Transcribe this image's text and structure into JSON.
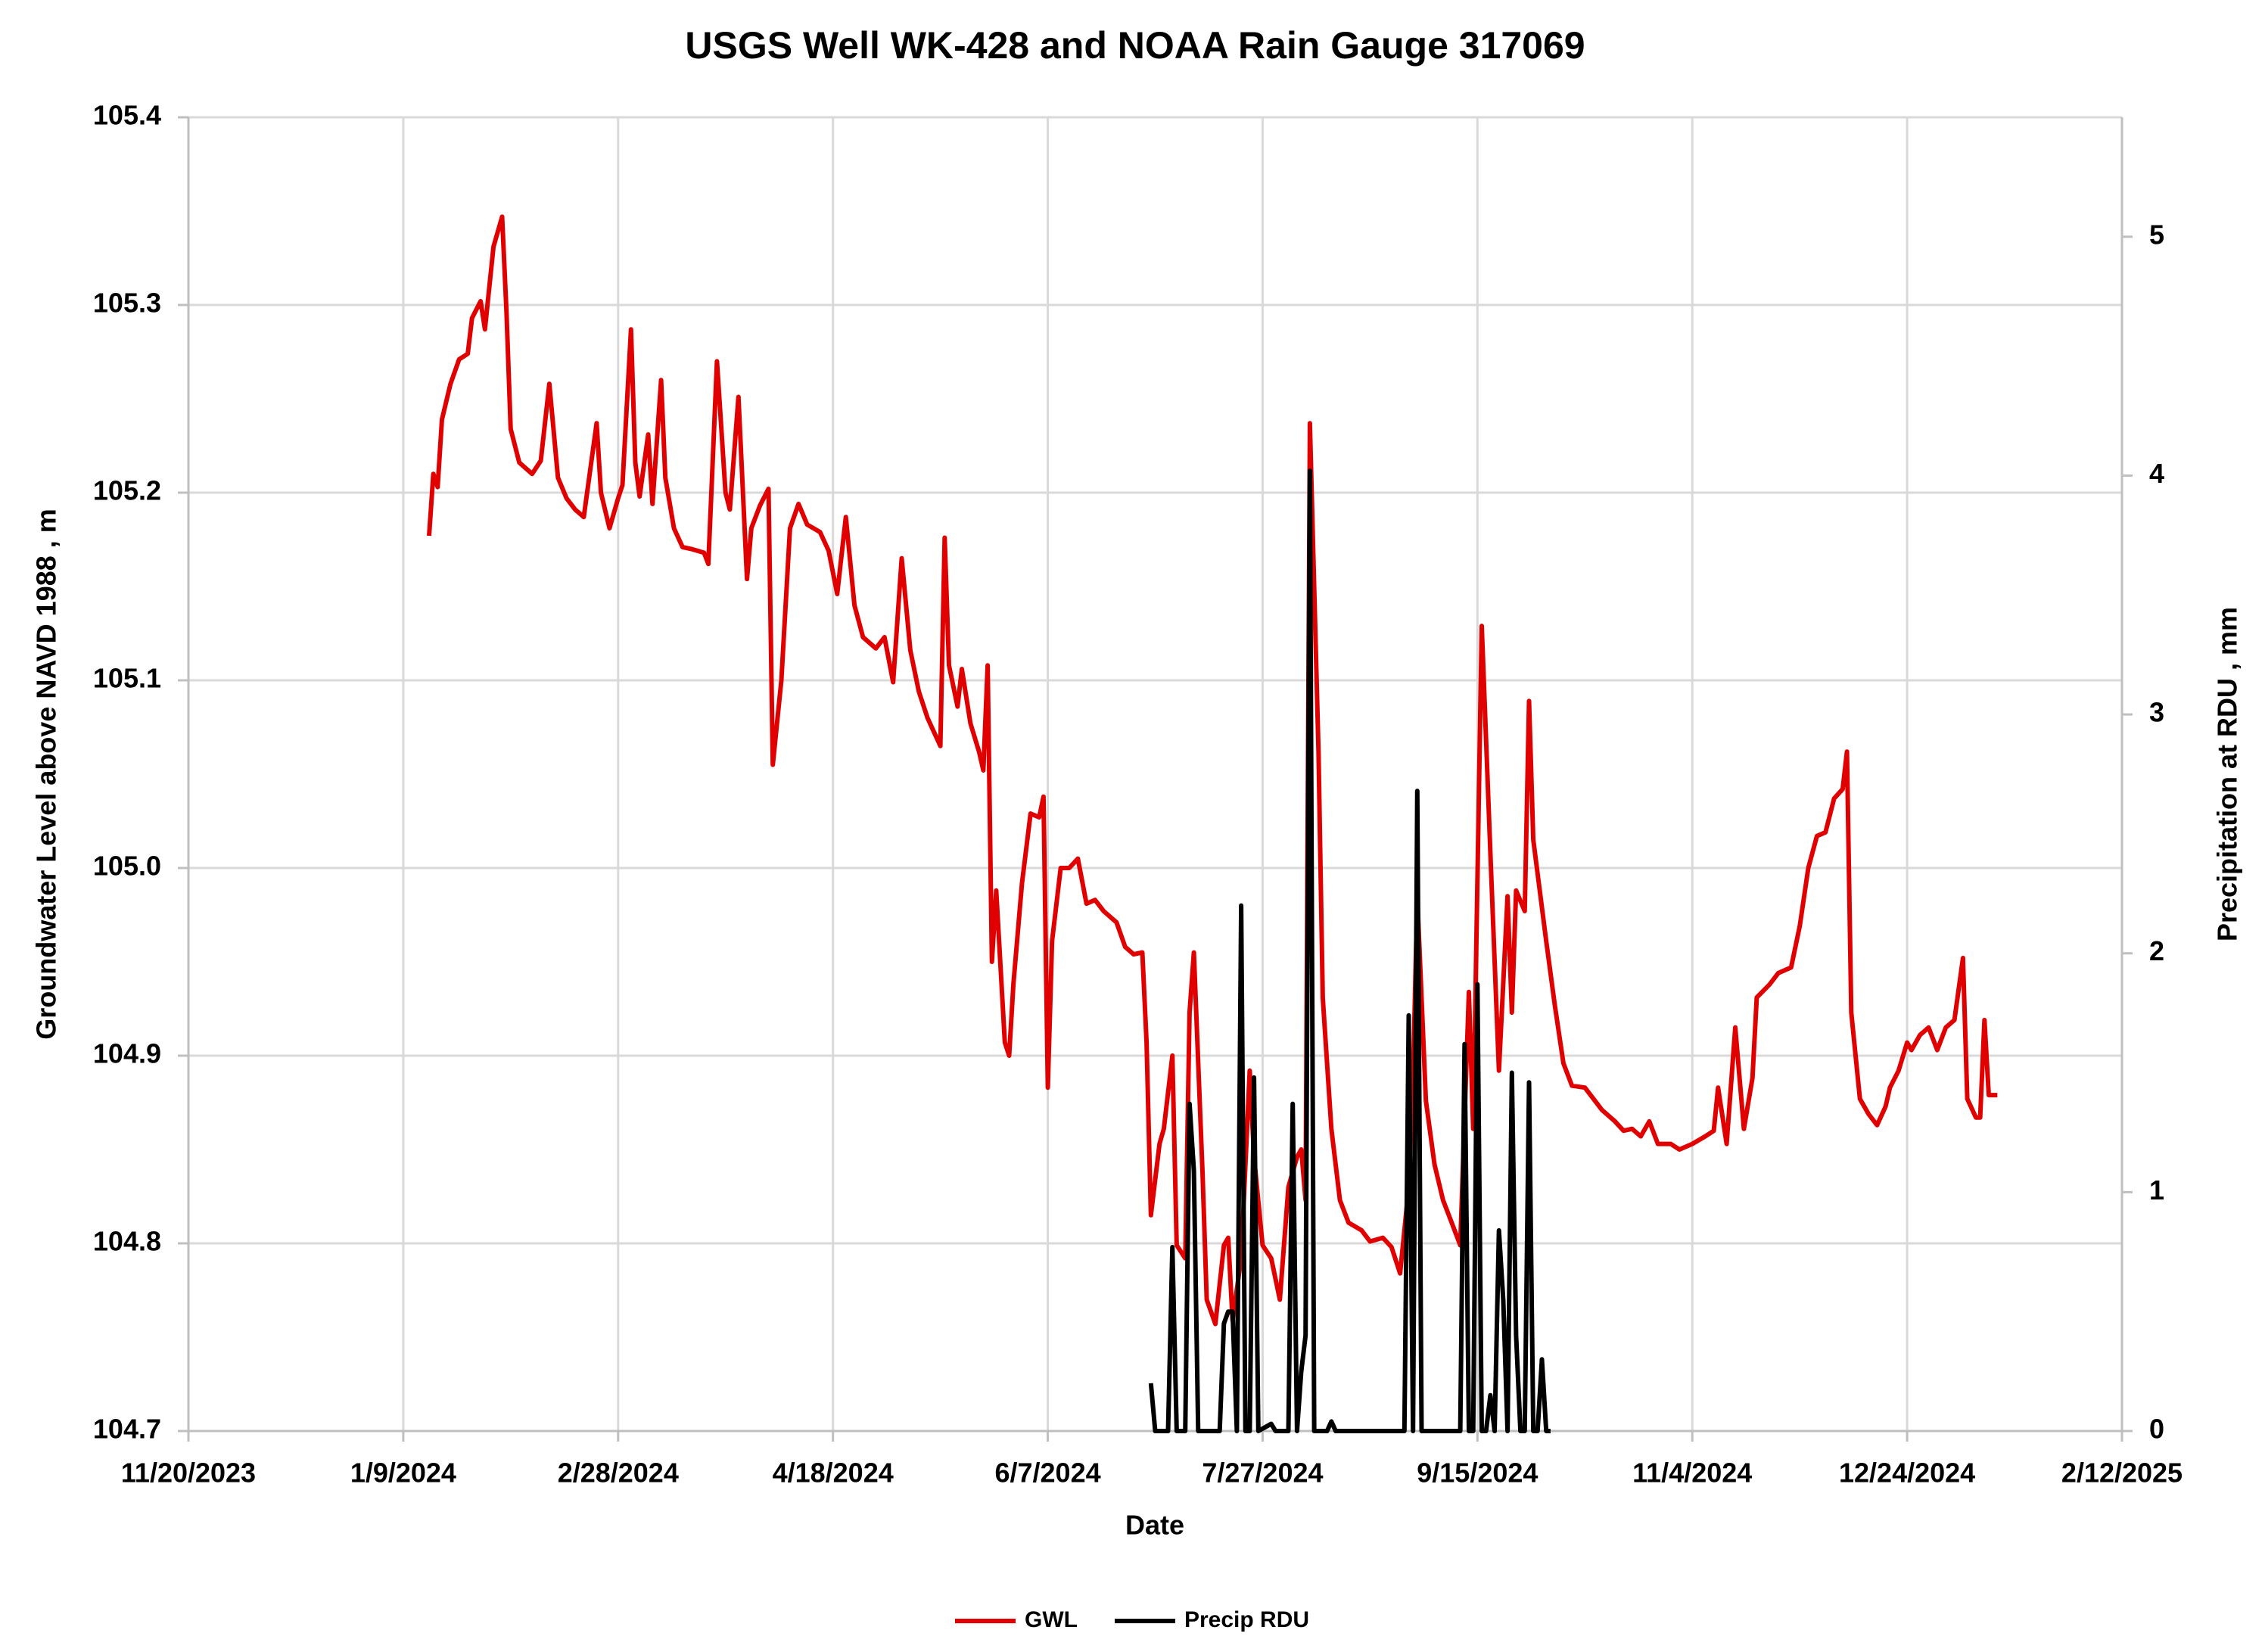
{
  "chart_data": {
    "type": "line",
    "title": "USGS Well WK-428 and NOAA Rain Gauge 317069",
    "x_label": "Date",
    "y_label": "Groundwater Level above NAVD 1988 , m",
    "y2_label": "Precipitation at RDU , mm",
    "xlim": [
      "11/20/2023",
      "2/12/2025"
    ],
    "xticks": [
      "11/20/2023",
      "1/9/2024",
      "2/28/2024",
      "4/18/2024",
      "6/7/2024",
      "7/27/2024",
      "9/15/2024",
      "11/4/2024",
      "12/24/2024",
      "2/12/2025"
    ],
    "ylim": [
      104.7,
      105.4
    ],
    "yticks": [
      104.7,
      104.8,
      104.9,
      {
        "value": 105,
        "label": "105.0"
      },
      105.1,
      105.2,
      105.3,
      105.4
    ],
    "y2lim": [
      0,
      5.5
    ],
    "y2ticks": [
      0,
      1,
      2,
      3,
      4,
      5
    ],
    "grid": true,
    "legend": "bottom",
    "series": [
      {
        "name": "GWL",
        "color": "#e00000",
        "x": [
          "1/15/2024",
          "1/16/2024",
          "1/17/2024",
          "1/18/2024",
          "1/20/2024",
          "1/22/2024",
          "1/24/2024",
          "1/25/2024",
          "1/27/2024",
          "1/28/2024",
          "1/30/2024",
          "2/1/2024",
          "2/2/2024",
          "2/3/2024",
          "2/5/2024",
          "2/8/2024",
          "2/10/2024",
          "2/12/2024",
          "2/14/2024",
          "2/16/2024",
          "2/18/2024",
          "2/20/2024",
          "2/23/2024",
          "2/24/2024",
          "2/26/2024",
          "2/28/2024",
          "2/29/2024",
          "3/2/2024",
          "3/3/2024",
          "3/4/2024",
          "3/6/2024",
          "3/7/2024",
          "3/9/2024",
          "3/10/2024",
          "3/12/2024",
          "3/14/2024",
          "3/16/2024",
          "3/19/2024",
          "3/20/2024",
          "3/22/2024",
          "3/24/2024",
          "3/25/2024",
          "3/27/2024",
          "3/29/2024",
          "3/30/2024",
          "4/1/2024",
          "4/3/2024",
          "4/4/2024",
          "4/6/2024",
          "4/8/2024",
          "4/10/2024",
          "4/12/2024",
          "4/15/2024",
          "4/17/2024",
          "4/19/2024",
          "4/21/2024",
          "4/23/2024",
          "4/25/2024",
          "4/28/2024",
          "4/30/2024",
          "5/2/2024",
          "5/4/2024",
          "5/6/2024",
          "5/8/2024",
          "5/10/2024",
          "5/13/2024",
          "5/14/2024",
          "5/15/2024",
          "5/17/2024",
          "5/18/2024",
          "5/20/2024",
          "5/22/2024",
          "5/23/2024",
          "5/24/2024",
          "5/25/2024",
          "5/26/2024",
          "5/28/2024",
          "5/29/2024",
          "5/30/2024",
          "6/1/2024",
          "6/3/2024",
          "6/5/2024",
          "6/6/2024",
          "6/7/2024",
          "6/8/2024",
          "6/10/2024",
          "6/12/2024",
          "6/14/2024",
          "6/16/2024",
          "6/18/2024",
          "6/20/2024",
          "6/23/2024",
          "6/25/2024",
          "6/27/2024",
          "6/29/2024",
          "6/30/2024",
          "7/1/2024",
          "7/3/2024",
          "7/4/2024",
          "7/6/2024",
          "7/7/2024",
          "7/9/2024",
          "7/10/2024",
          "7/11/2024",
          "7/13/2024",
          "7/14/2024",
          "7/16/2024",
          "7/18/2024",
          "7/19/2024",
          "7/20/2024",
          "7/22/2024",
          "7/24/2024",
          "7/25/2024",
          "7/27/2024",
          "7/29/2024",
          "7/31/2024",
          "8/2/2024",
          "8/4/2024",
          "8/5/2024",
          "8/6/2024",
          "8/7/2024",
          "8/9/2024",
          "8/10/2024",
          "8/12/2024",
          "8/14/2024",
          "8/16/2024",
          "8/19/2024",
          "8/21/2024",
          "8/24/2024",
          "8/26/2024",
          "8/28/2024",
          "8/30/2024",
          "8/31/2024",
          "9/1/2024",
          "9/3/2024",
          "9/5/2024",
          "9/7/2024",
          "9/9/2024",
          "9/11/2024",
          "9/13/2024",
          "9/14/2024",
          "9/16/2024",
          "9/18/2024",
          "9/20/2024",
          "9/22/2024",
          "9/23/2024",
          "9/24/2024",
          "9/26/2024",
          "9/27/2024",
          "9/28/2024",
          "10/1/2024",
          "10/3/2024",
          "10/5/2024",
          "10/7/2024",
          "10/10/2024",
          "10/12/2024",
          "10/14/2024",
          "10/17/2024",
          "10/19/2024",
          "10/21/2024",
          "10/23/2024",
          "10/25/2024",
          "10/27/2024",
          "10/30/2024",
          "11/1/2024",
          "11/4/2024",
          "11/7/2024",
          "11/9/2024",
          "11/10/2024",
          "11/12/2024",
          "11/14/2024",
          "11/16/2024",
          "11/18/2024",
          "11/19/2024",
          "11/22/2024",
          "11/24/2024",
          "11/27/2024",
          "11/29/2024",
          "12/1/2024",
          "12/3/2024",
          "12/5/2024",
          "12/7/2024",
          "12/9/2024",
          "12/10/2024",
          "12/11/2024",
          "12/13/2024",
          "12/15/2024",
          "12/17/2024",
          "12/19/2024",
          "12/20/2024",
          "12/22/2024",
          "12/24/2024",
          "12/25/2024",
          "12/27/2024",
          "12/29/2024",
          "12/31/2024",
          "1/2/2025",
          "1/4/2025",
          "1/6/2025",
          "1/7/2025",
          "1/9/2025",
          "1/10/2025",
          "1/11/2025",
          "1/12/2025",
          "1/14/2025"
        ],
        "values": [
          105.177,
          105.21,
          105.203,
          105.239,
          105.258,
          105.271,
          105.274,
          105.293,
          105.302,
          105.287,
          105.331,
          105.347,
          105.297,
          105.234,
          105.216,
          105.21,
          105.217,
          105.258,
          105.208,
          105.197,
          105.191,
          105.187,
          105.237,
          105.2,
          105.181,
          105.197,
          105.204,
          105.287,
          105.216,
          105.198,
          105.231,
          105.194,
          105.26,
          105.208,
          105.181,
          105.171,
          105.17,
          105.168,
          105.162,
          105.27,
          105.2,
          105.191,
          105.251,
          105.154,
          105.181,
          105.193,
          105.202,
          105.055,
          105.1,
          105.181,
          105.194,
          105.183,
          105.179,
          105.169,
          105.146,
          105.187,
          105.14,
          105.123,
          105.117,
          105.123,
          105.099,
          105.165,
          105.116,
          105.094,
          105.08,
          105.065,
          105.176,
          105.108,
          105.086,
          105.106,
          105.077,
          105.062,
          105.052,
          105.108,
          104.95,
          104.988,
          104.907,
          104.9,
          104.938,
          104.992,
          105.029,
          105.027,
          105.038,
          104.883,
          104.961,
          105,
          105,
          105.005,
          104.981,
          104.983,
          104.977,
          104.971,
          104.958,
          104.954,
          104.955,
          104.907,
          104.815,
          104.853,
          104.861,
          104.9,
          104.799,
          104.792,
          104.923,
          104.955,
          104.838,
          104.77,
          104.757,
          104.799,
          104.803,
          104.759,
          104.792,
          104.892,
          104.846,
          104.799,
          104.792,
          104.77,
          104.83,
          104.846,
          104.85,
          104.823,
          105.237,
          105.062,
          104.931,
          104.861,
          104.823,
          104.811,
          104.807,
          104.801,
          104.803,
          104.798,
          104.784,
          104.83,
          104.888,
          104.985,
          104.876,
          104.842,
          104.823,
          104.811,
          104.799,
          104.934,
          104.861,
          105.129,
          105.008,
          104.892,
          104.985,
          104.923,
          104.988,
          104.977,
          105.089,
          105.015,
          104.961,
          104.927,
          104.896,
          104.884,
          104.883,
          104.877,
          104.871,
          104.865,
          104.86,
          104.861,
          104.857,
          104.865,
          104.853,
          104.853,
          104.85,
          104.853,
          104.857,
          104.86,
          104.883,
          104.853,
          104.915,
          104.861,
          104.888,
          104.931,
          104.938,
          104.944,
          104.947,
          104.969,
          105,
          105.017,
          105.019,
          105.037,
          105.042,
          105.062,
          104.923,
          104.877,
          104.869,
          104.863,
          104.873,
          104.883,
          104.892,
          104.907,
          104.903,
          104.911,
          104.915,
          104.903,
          104.915,
          104.919,
          104.952,
          104.877,
          104.867,
          104.867,
          104.919,
          104.879,
          104.879
        ]
      },
      {
        "name": "Precip RDU",
        "color": "#000000",
        "axis": "y2",
        "x": [
          "7/1/2024",
          "7/2/2024",
          "7/5/2024",
          "7/6/2024",
          "7/7/2024",
          "7/9/2024",
          "7/10/2024",
          "7/11/2024",
          "7/12/2024",
          "7/17/2024",
          "7/18/2024",
          "7/19/2024",
          "7/20/2024",
          "7/21/2024",
          "7/22/2024",
          "7/23/2024",
          "7/24/2024",
          "7/25/2024",
          "7/26/2024",
          "7/29/2024",
          "7/30/2024",
          "8/2/2024",
          "8/3/2024",
          "8/4/2024",
          "8/5/2024",
          "8/6/2024",
          "8/7/2024",
          "8/8/2024",
          "8/11/2024",
          "8/12/2024",
          "8/13/2024",
          "8/29/2024",
          "8/30/2024",
          "8/31/2024",
          "9/1/2024",
          "9/2/2024",
          "9/11/2024",
          "9/12/2024",
          "9/13/2024",
          "9/14/2024",
          "9/15/2024",
          "9/16/2024",
          "9/17/2024",
          "9/18/2024",
          "9/19/2024",
          "9/20/2024",
          "9/21/2024",
          "9/22/2024",
          "9/23/2024",
          "9/24/2024",
          "9/25/2024",
          "9/26/2024",
          "9/27/2024",
          "9/28/2024",
          "9/29/2024",
          "9/30/2024",
          "10/1/2024",
          "10/2/2024"
        ],
        "values": [
          0.2,
          0,
          0,
          0.77,
          0,
          0,
          1.37,
          1.09,
          0,
          0,
          0.45,
          0.5,
          0.5,
          0,
          2.2,
          0,
          0,
          1.48,
          0,
          0.03,
          0,
          0,
          1.37,
          0,
          0.25,
          0.4,
          4.02,
          0,
          0,
          0.04,
          0,
          0,
          1.74,
          0,
          2.68,
          0,
          0,
          1.62,
          0,
          0,
          1.87,
          0,
          0,
          0.15,
          0,
          0.84,
          0.55,
          0,
          1.5,
          0.4,
          0,
          0,
          1.46,
          0,
          0,
          0.3,
          0,
          0
        ]
      }
    ]
  }
}
